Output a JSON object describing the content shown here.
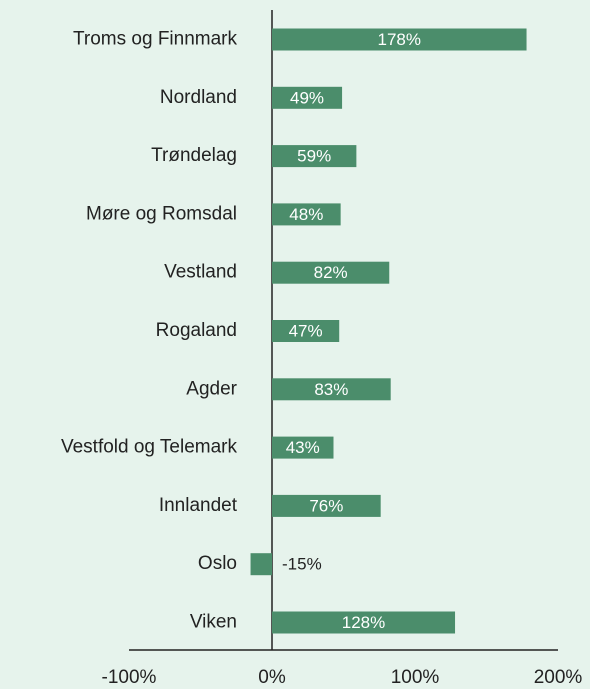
{
  "chart_data": {
    "type": "bar",
    "orientation": "horizontal",
    "categories": [
      "Troms og Finnmark",
      "Nordland",
      "Trøndelag",
      "Møre og Romsdal",
      "Vestland",
      "Rogaland",
      "Agder",
      "Vestfold og Telemark",
      "Innlandet",
      "Oslo",
      "Viken"
    ],
    "values": [
      178,
      49,
      59,
      48,
      82,
      47,
      83,
      43,
      76,
      -15,
      128
    ],
    "value_labels": [
      "178%",
      "49%",
      "59%",
      "48%",
      "82%",
      "47%",
      "83%",
      "43%",
      "76%",
      "-15%",
      "128%"
    ],
    "color": "#4b8d6b",
    "xlim": [
      -100,
      200
    ],
    "xticks": [
      {
        "value": -100,
        "label": "-100%"
      },
      {
        "value": 0,
        "label": "0%"
      },
      {
        "value": 100,
        "label": "100%"
      },
      {
        "value": 200,
        "label": "200%"
      }
    ]
  }
}
